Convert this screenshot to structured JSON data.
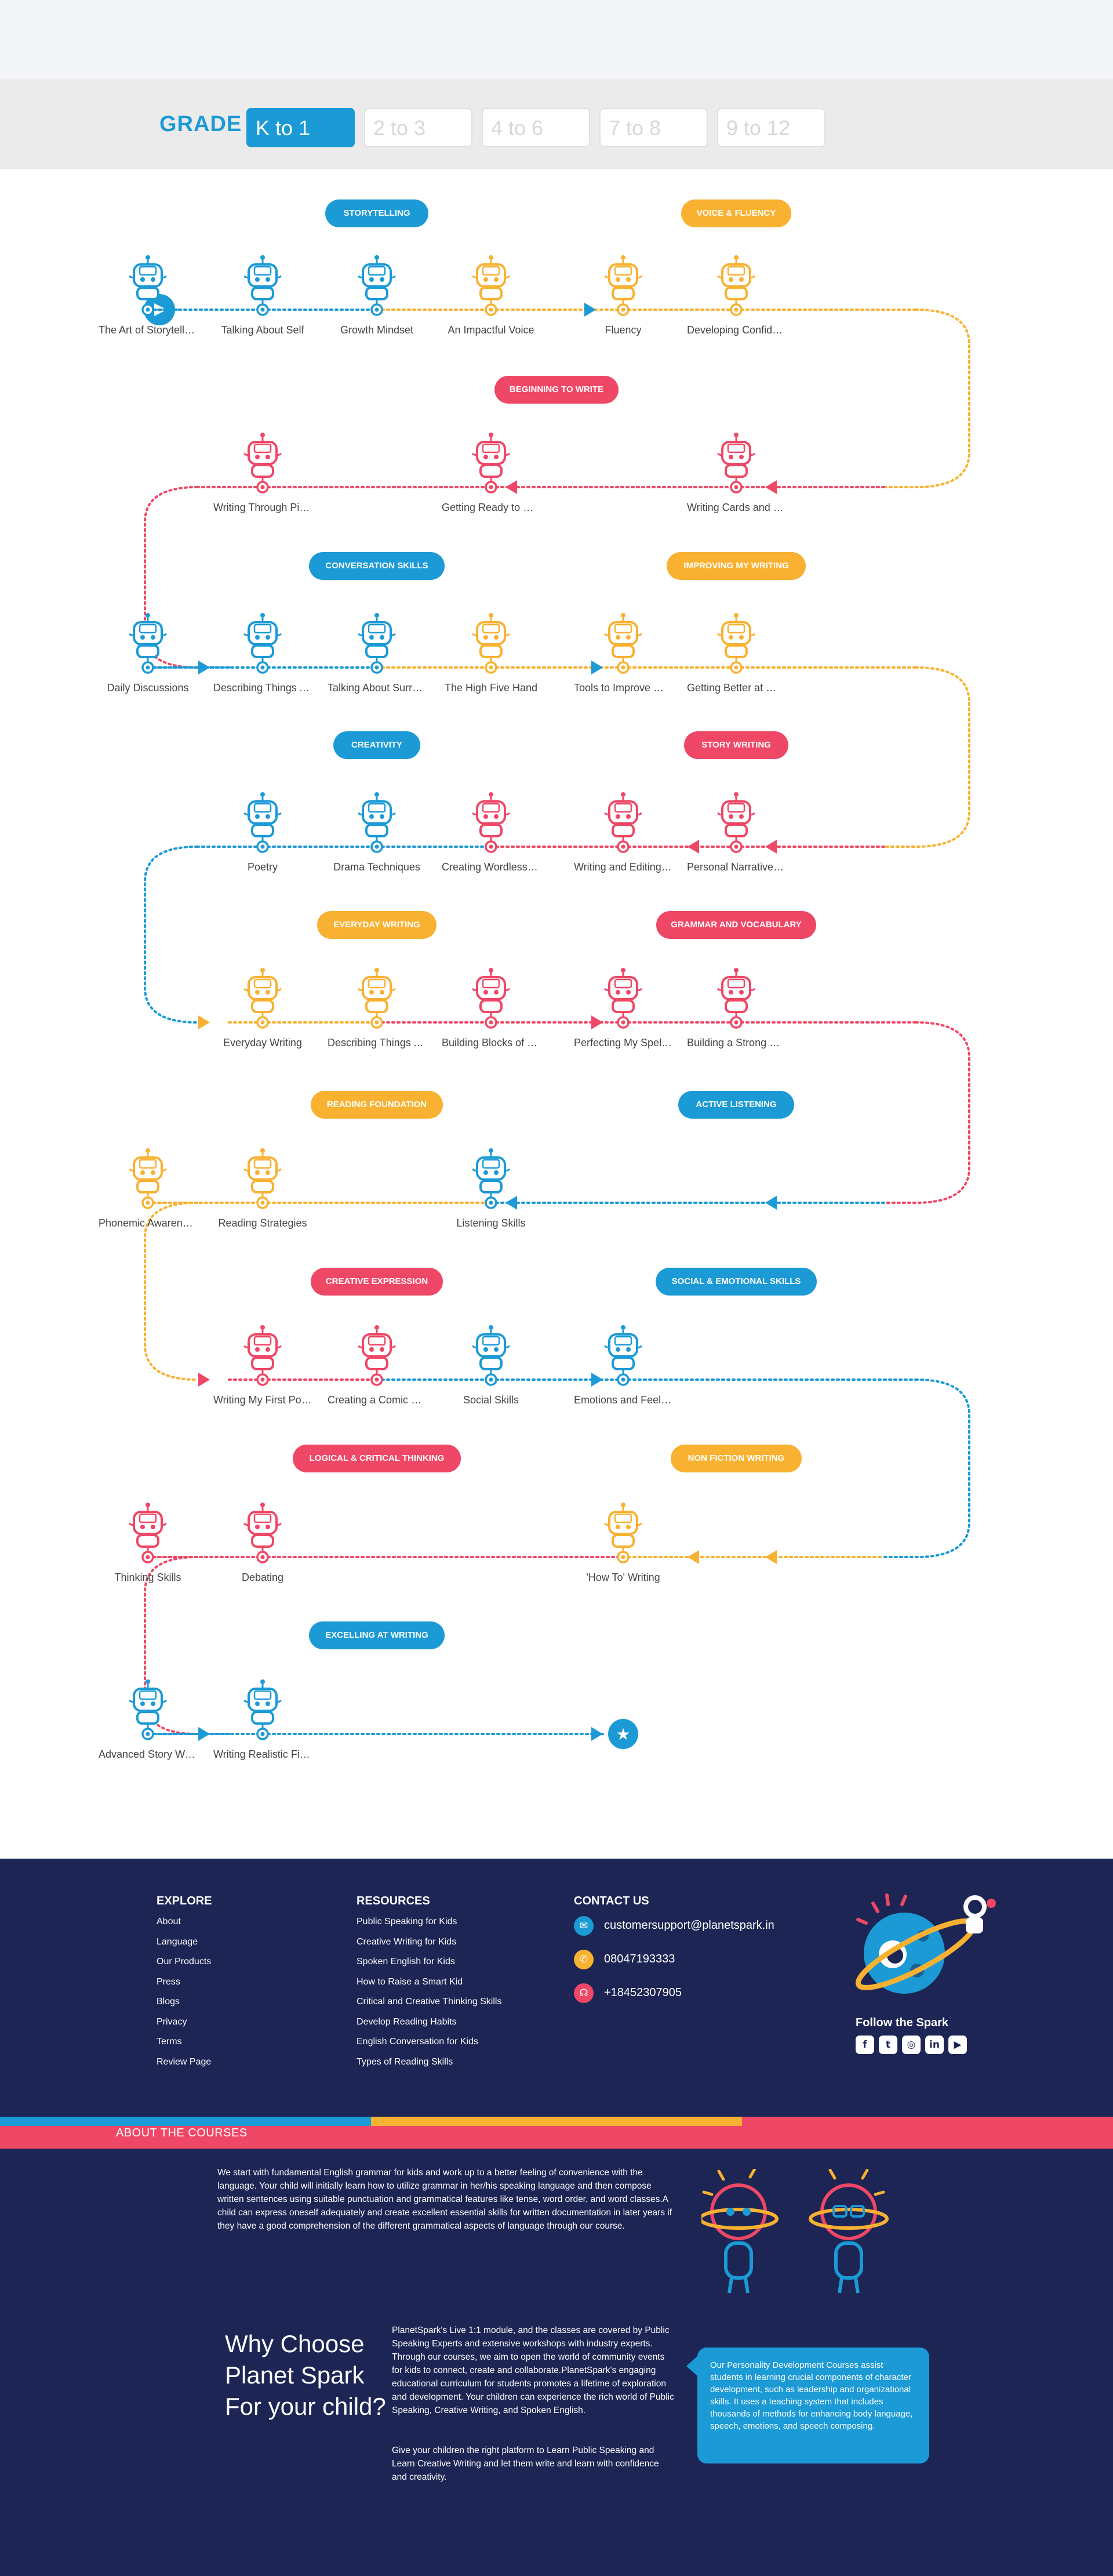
{
  "grade": {
    "label": "GRADE",
    "tabs": [
      {
        "label": "K to 1",
        "active": true
      },
      {
        "label": "2 to 3",
        "active": false
      },
      {
        "label": "4 to 6",
        "active": false
      },
      {
        "label": "7 to 8",
        "active": false
      },
      {
        "label": "9 to 12",
        "active": false
      }
    ]
  },
  "colors": {
    "blue": "#1b9ad6",
    "yellow": "#f8b131",
    "red": "#ef4766",
    "navy": "#1c2554"
  },
  "rows": [
    {
      "groups": [
        {
          "title": "Storytelling",
          "color": "blue"
        },
        {
          "title": "Voice & Fluency",
          "color": "yellow"
        }
      ],
      "nodes": [
        {
          "label": "The Art of Storytelling",
          "color": "blue"
        },
        {
          "label": "Talking About Self",
          "color": "blue"
        },
        {
          "label": "Growth Mindset",
          "color": "blue"
        },
        {
          "label": "An Impactful Voice",
          "color": "yellow"
        },
        {
          "label": "Fluency",
          "color": "yellow"
        },
        {
          "label": "Developing Confidence",
          "color": "yellow"
        }
      ]
    },
    {
      "groups": [
        {
          "title": "Beginning to Write",
          "color": "red"
        }
      ],
      "nodes": [
        {
          "label": "Writing Through Pictures",
          "color": "red"
        },
        {
          "label": "Getting Ready to Write",
          "color": "red"
        },
        {
          "label": "Writing Cards and Letters",
          "color": "red"
        }
      ]
    },
    {
      "groups": [
        {
          "title": "Conversation Skills",
          "color": "blue"
        },
        {
          "title": "Improving My Writing",
          "color": "yellow"
        }
      ],
      "nodes": [
        {
          "label": "Daily Discussions",
          "color": "blue"
        },
        {
          "label": "Describing Things Around Me",
          "color": "blue"
        },
        {
          "label": "Talking About Surroundings",
          "color": "blue"
        },
        {
          "label": "The High Five Hand",
          "color": "yellow"
        },
        {
          "label": "Tools to Improve My Writing",
          "color": "yellow"
        },
        {
          "label": "Getting Better at Writing",
          "color": "yellow"
        }
      ]
    },
    {
      "groups": [
        {
          "title": "Creativity",
          "color": "blue"
        },
        {
          "title": "Story Writing",
          "color": "red"
        }
      ],
      "nodes": [
        {
          "label": "Poetry",
          "color": "blue"
        },
        {
          "label": "Drama Techniques",
          "color": "blue"
        },
        {
          "label": "Creating Wordless Stories",
          "color": "red"
        },
        {
          "label": "Writing and Editing Stories",
          "color": "red"
        },
        {
          "label": "Personal Narrative Writing",
          "color": "red"
        }
      ]
    },
    {
      "groups": [
        {
          "title": "Everyday Writing",
          "color": "yellow"
        },
        {
          "title": "Grammar and Vocabulary",
          "color": "red"
        }
      ],
      "nodes": [
        {
          "label": "Everyday Writing",
          "color": "yellow"
        },
        {
          "label": "Describing Things Around Me",
          "color": "yellow"
        },
        {
          "label": "Building Blocks of Grammar",
          "color": "red"
        },
        {
          "label": "Perfecting My Spellings",
          "color": "red"
        },
        {
          "label": "Building a Strong Vocabulary",
          "color": "red"
        }
      ]
    },
    {
      "groups": [
        {
          "title": "Reading Foundation",
          "color": "yellow"
        },
        {
          "title": "Active Listening",
          "color": "blue"
        }
      ],
      "nodes": [
        {
          "label": "Phonemic Awareness",
          "color": "yellow"
        },
        {
          "label": "Reading Strategies",
          "color": "yellow"
        },
        {
          "label": "Listening Skills",
          "color": "blue"
        }
      ]
    },
    {
      "groups": [
        {
          "title": "Creative Expression",
          "color": "red"
        },
        {
          "title": "Social & Emotional Skills",
          "color": "blue"
        }
      ],
      "nodes": [
        {
          "label": "Writing My First Poem",
          "color": "red"
        },
        {
          "label": "Creating a Comic Book",
          "color": "red"
        },
        {
          "label": "Social Skills",
          "color": "blue"
        },
        {
          "label": "Emotions and Feelings",
          "color": "blue"
        }
      ]
    },
    {
      "groups": [
        {
          "title": "Logical & Critical Thinking",
          "color": "red"
        },
        {
          "title": "Non Fiction Writing",
          "color": "yellow"
        }
      ],
      "nodes": [
        {
          "label": "Thinking Skills",
          "color": "red"
        },
        {
          "label": "Debating",
          "color": "red"
        },
        {
          "label": "'How To' Writing",
          "color": "yellow"
        }
      ]
    },
    {
      "groups": [
        {
          "title": "Excelling at Writing",
          "color": "blue"
        }
      ],
      "nodes": [
        {
          "label": "Advanced Story Writing",
          "color": "blue"
        },
        {
          "label": "Writing Realistic Fiction",
          "color": "blue"
        }
      ]
    }
  ],
  "footer": {
    "explore": {
      "title": "EXPLORE",
      "links": [
        "About",
        "Language",
        "Our Products",
        "Press",
        "Blogs",
        "Privacy",
        "Terms",
        "Review Page"
      ]
    },
    "resources": {
      "title": "RESOURCES",
      "links": [
        "Public Speaking for Kids",
        "Creative Writing for Kids",
        "Spoken English for Kids",
        "How to Raise a Smart Kid",
        "Critical and Creative Thinking Skills",
        "Develop Reading Habits",
        "English Conversation for Kids",
        "Types of Reading Skills"
      ]
    },
    "contact": {
      "title": "CONTACT US",
      "email": "customersupport@planetspark.in",
      "phone": "08047193333",
      "phone2": "+18452307905"
    },
    "follow": "Follow the Spark",
    "socials": [
      "facebook-icon",
      "twitter-icon",
      "instagram-icon",
      "linkedin-icon",
      "youtube-icon"
    ]
  },
  "about": {
    "title": "ABOUT THE COURSES",
    "body": "We start with fundamental English grammar for kids and work up to a better feeling of convenience with the language. Your child will initially learn how to utilize grammar in her/his speaking language and then compose written sentences using suitable punctuation and grammatical features like tense, word order, and word classes.A child can express oneself adequately and create excellent essential skills for written documentation in later years if they have a good comprehension of the different grammatical aspects of language through our course.",
    "why_title": "Why Choose Planet Spark For your child?",
    "why_body1": "PlanetSpark's Live 1:1 module, and the classes are covered by Public Speaking Experts and extensive workshops with industry experts. Through our courses, we aim to open the world of community events for kids to connect, create and collaborate.PlanetSpark's engaging educational curriculum for students promotes a lifetime of exploration and development. Your children can experience the rich world of Public Speaking, Creative Writing, and Spoken English.",
    "why_body2": "Give your children the right platform to Learn Public Speaking and Learn Creative Writing and let them write and learn with confidence and creativity.",
    "box": "Our Personality Development Courses assist students in learning crucial components of character development, such as leadership and organizational skills. It uses a teaching system that includes thousands of methods for enhancing body language, speech, emotions, and speech composing."
  }
}
